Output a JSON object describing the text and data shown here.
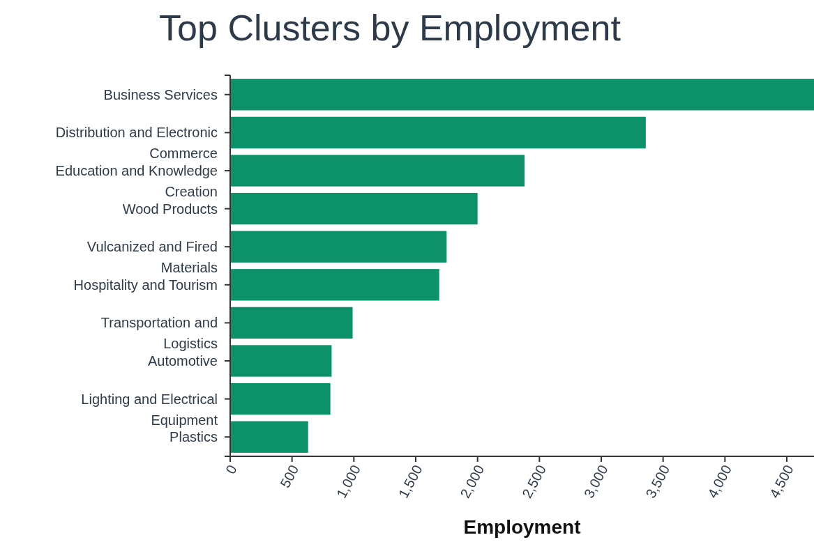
{
  "chart_data": {
    "type": "bar",
    "orientation": "horizontal",
    "title": "Top Clusters by Employment",
    "xlabel": "Employment",
    "categories": [
      "Business Services",
      "Distribution and Electronic Commerce",
      "Education and Knowledge Creation",
      "Wood Products",
      "Vulcanized and Fired Materials",
      "Hospitality and Tourism",
      "Transportation and Logistics",
      "Automotive",
      "Lighting and Electrical Equipment",
      "Plastics"
    ],
    "values": [
      4720,
      3360,
      2380,
      2000,
      1750,
      1690,
      990,
      820,
      810,
      630
    ],
    "color": "#0c9169",
    "xlim": [
      0,
      4720
    ],
    "xticks": [
      0,
      {
        "value": 500,
        "label": "500"
      },
      {
        "value": 1000,
        "label": "1,000"
      },
      {
        "value": 1500,
        "label": "1,500"
      },
      {
        "value": 2000,
        "label": "2,000"
      },
      {
        "value": 2500,
        "label": "2,500"
      },
      {
        "value": 3000,
        "label": "3,000"
      },
      {
        "value": 3500,
        "label": "3,500"
      },
      {
        "value": 4000,
        "label": "4,000"
      },
      {
        "value": 4500,
        "label": "4,500"
      }
    ],
    "grid": false
  }
}
